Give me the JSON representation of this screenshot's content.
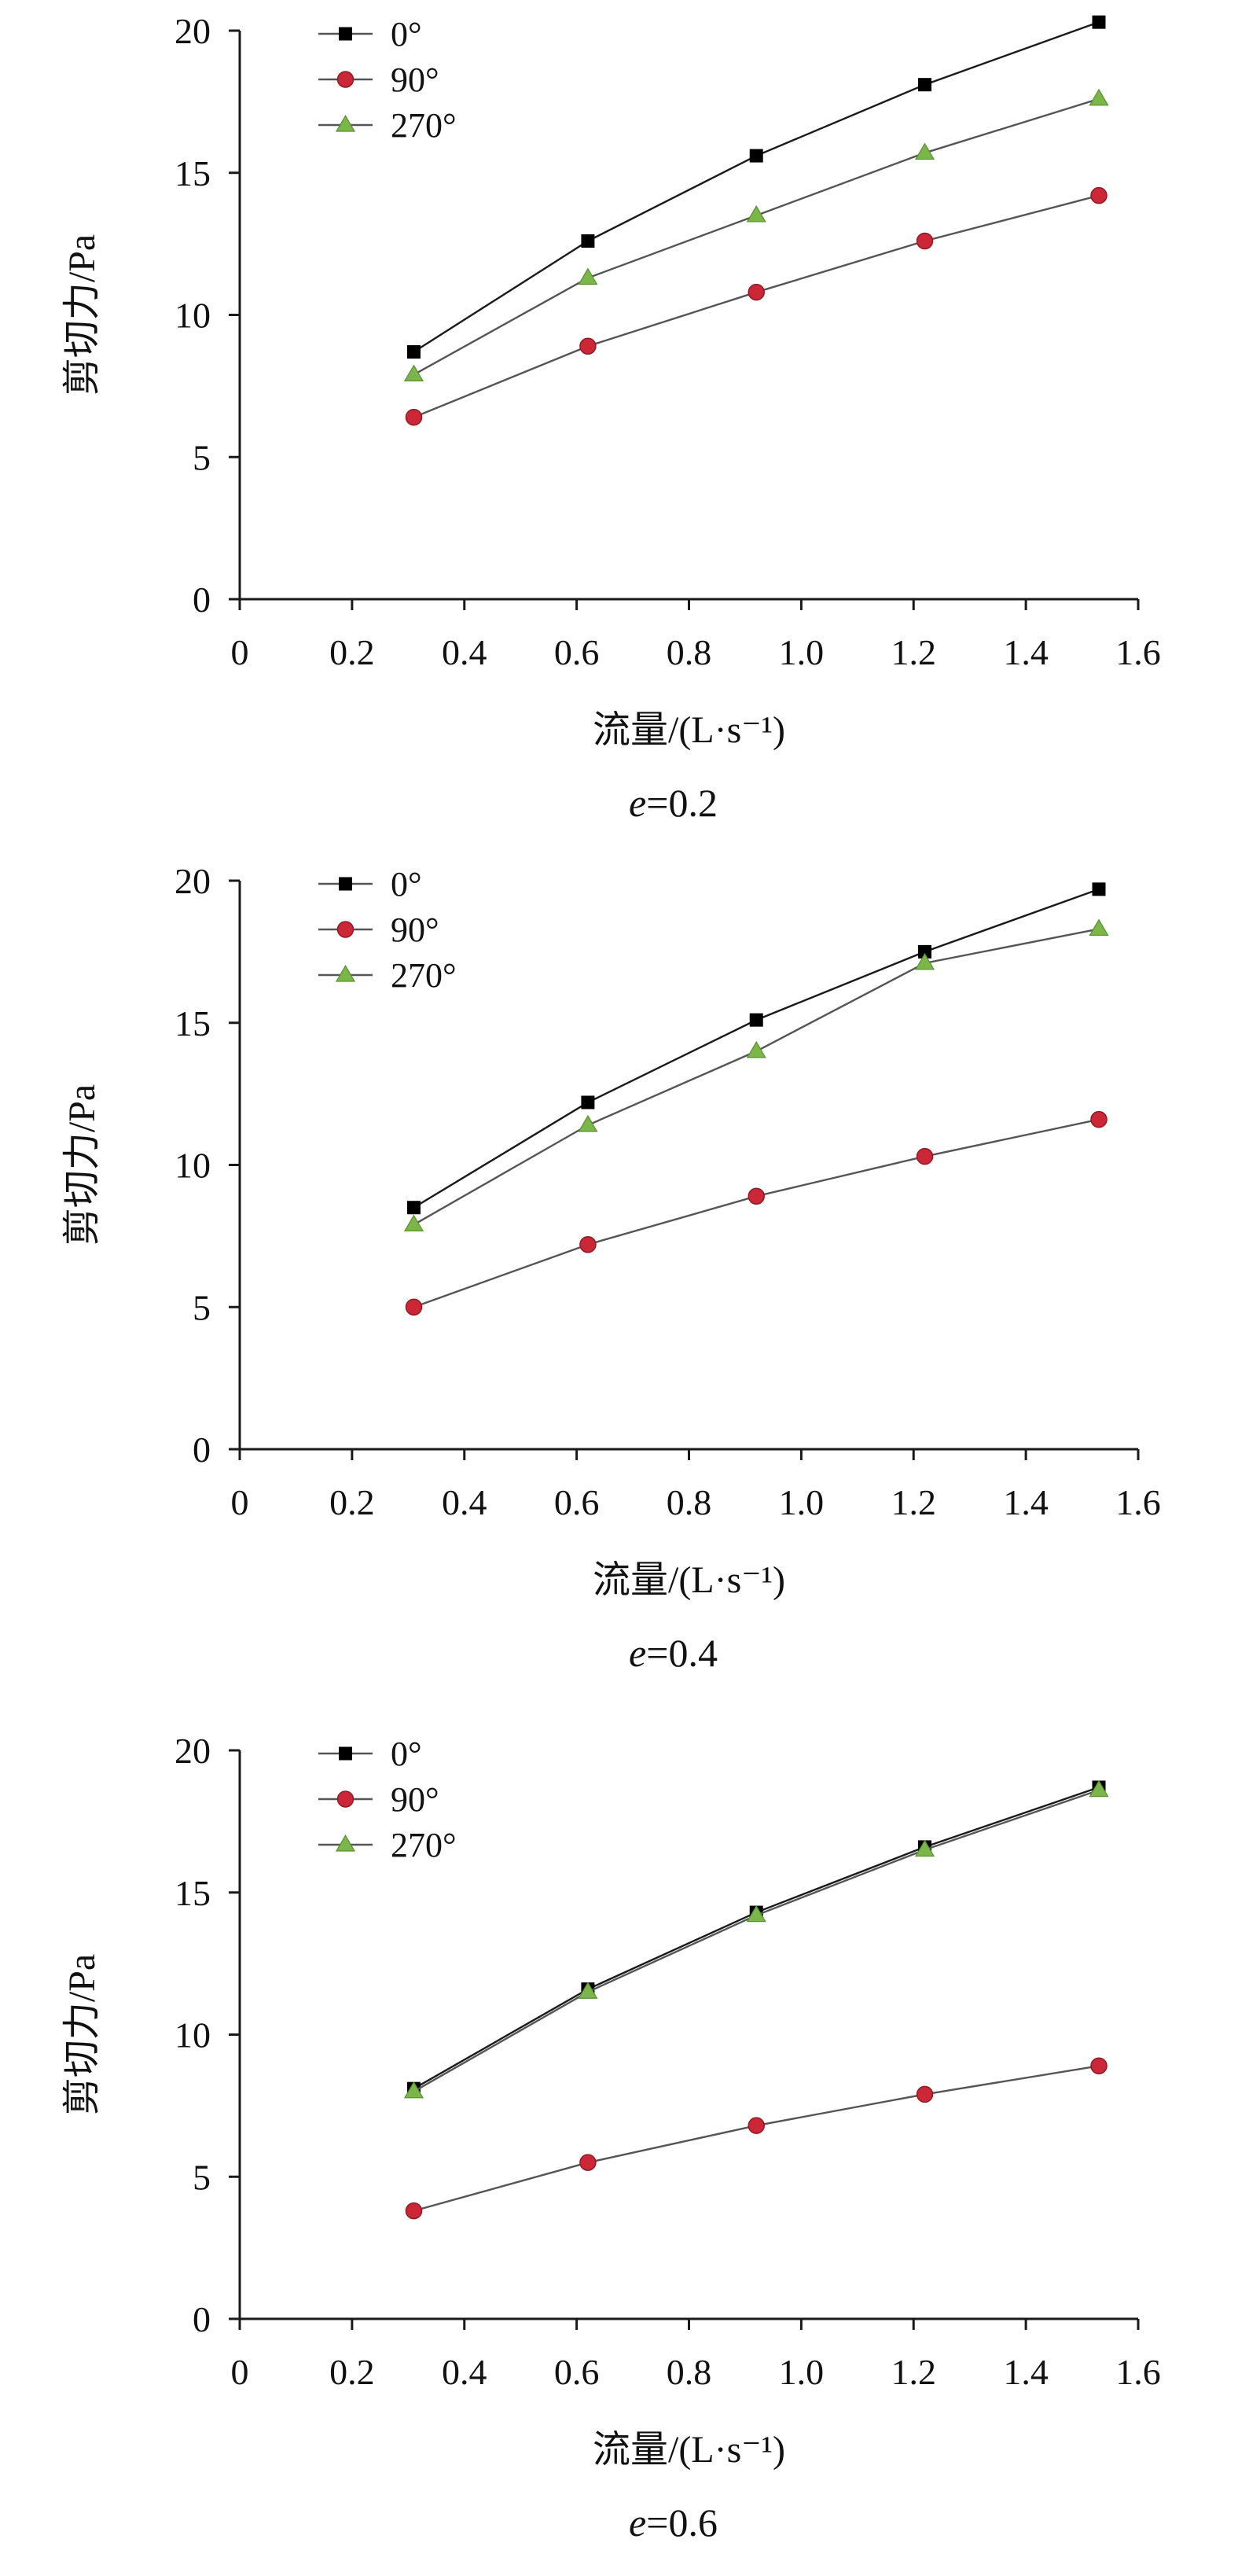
{
  "charts": [
    {
      "panel_caption_parts": [
        "e",
        "=0.2"
      ],
      "chart_data": {
        "type": "line",
        "xlabel": "流量/(L·s⁻¹)",
        "ylabel": "剪切力/Pa",
        "xlim": [
          0,
          1.6
        ],
        "ylim": [
          0,
          20
        ],
        "xticks": [
          "0",
          "0.2",
          "0.4",
          "0.6",
          "0.8",
          "1.0",
          "1.2",
          "1.4",
          "1.6"
        ],
        "yticks": [
          "0",
          "5",
          "10",
          "15",
          "20"
        ],
        "legend_position": "top-left",
        "x": [
          0.31,
          0.62,
          0.92,
          1.22,
          1.53
        ],
        "series": [
          {
            "name": "0°",
            "marker": "square",
            "color": "#000000",
            "values": [
              8.7,
              12.6,
              15.6,
              18.1,
              20.3
            ]
          },
          {
            "name": "90°",
            "marker": "circle",
            "color": "#cc2736",
            "values": [
              6.4,
              8.9,
              10.8,
              12.6,
              14.2
            ]
          },
          {
            "name": "270°",
            "marker": "triangle",
            "color": "#7ab648",
            "values": [
              7.9,
              11.3,
              13.5,
              15.7,
              17.6
            ]
          }
        ]
      }
    },
    {
      "panel_caption_parts": [
        "e",
        "=0.4"
      ],
      "chart_data": {
        "type": "line",
        "xlabel": "流量/(L·s⁻¹)",
        "ylabel": "剪切力/Pa",
        "xlim": [
          0,
          1.6
        ],
        "ylim": [
          0,
          20
        ],
        "xticks": [
          "0",
          "0.2",
          "0.4",
          "0.6",
          "0.8",
          "1.0",
          "1.2",
          "1.4",
          "1.6"
        ],
        "yticks": [
          "0",
          "5",
          "10",
          "15",
          "20"
        ],
        "legend_position": "top-left",
        "x": [
          0.31,
          0.62,
          0.92,
          1.22,
          1.53
        ],
        "series": [
          {
            "name": "0°",
            "marker": "square",
            "color": "#000000",
            "values": [
              8.5,
              12.2,
              15.1,
              17.5,
              19.7
            ]
          },
          {
            "name": "90°",
            "marker": "circle",
            "color": "#cc2736",
            "values": [
              5.0,
              7.2,
              8.9,
              10.3,
              11.6
            ]
          },
          {
            "name": "270°",
            "marker": "triangle",
            "color": "#7ab648",
            "values": [
              7.9,
              11.4,
              14.0,
              17.1,
              18.3
            ]
          }
        ]
      }
    },
    {
      "panel_caption_parts": [
        "e",
        "=0.6"
      ],
      "chart_data": {
        "type": "line",
        "xlabel": "流量/(L·s⁻¹)",
        "ylabel": "剪切力/Pa",
        "xlim": [
          0,
          1.6
        ],
        "ylim": [
          0,
          20
        ],
        "xticks": [
          "0",
          "0.2",
          "0.4",
          "0.6",
          "0.8",
          "1.0",
          "1.2",
          "1.4",
          "1.6"
        ],
        "yticks": [
          "0",
          "5",
          "10",
          "15",
          "20"
        ],
        "legend_position": "top-left",
        "x": [
          0.31,
          0.62,
          0.92,
          1.22,
          1.53
        ],
        "series": [
          {
            "name": "0°",
            "marker": "square",
            "color": "#000000",
            "values": [
              8.1,
              11.6,
              14.3,
              16.6,
              18.7
            ]
          },
          {
            "name": "90°",
            "marker": "circle",
            "color": "#cc2736",
            "values": [
              3.8,
              5.5,
              6.8,
              7.9,
              8.9
            ]
          },
          {
            "name": "270°",
            "marker": "triangle",
            "color": "#7ab648",
            "values": [
              8.0,
              11.5,
              14.2,
              16.5,
              18.6
            ]
          }
        ]
      }
    }
  ]
}
